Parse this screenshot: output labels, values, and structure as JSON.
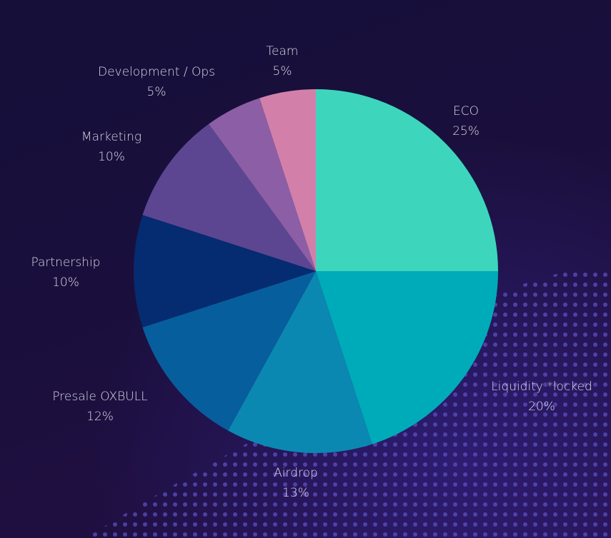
{
  "chart_data": {
    "type": "pie",
    "categories": [
      "ECO",
      "Liquidity *locked",
      "Airdrop",
      "Presale OXBULL",
      "Partnership",
      "Marketing",
      "Development / Ops",
      "Team"
    ],
    "values": [
      25,
      20,
      13,
      12,
      10,
      10,
      5,
      5
    ],
    "value_labels": [
      "25%",
      "20%",
      "13%",
      "12%",
      "10%",
      "10%",
      "5%",
      "5%"
    ],
    "colors": [
      "#3dd6bd",
      "#00abb9",
      "#0b88b2",
      "#075e9c",
      "#052b70",
      "#5c4691",
      "#8c5ea5",
      "#d280aa"
    ]
  }
}
